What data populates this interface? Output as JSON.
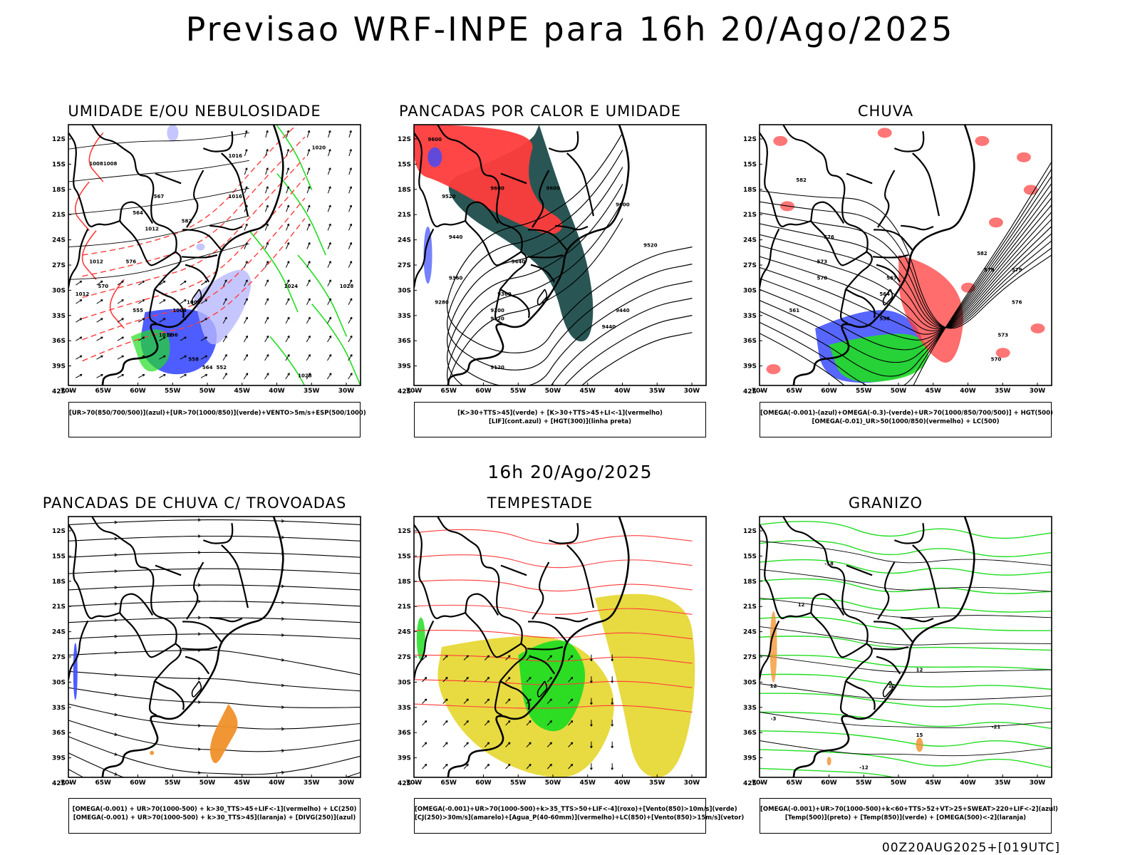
{
  "title": "Previsao WRF-INPE  para 16h 20/Ago/2025",
  "mid_label": "16h 20/Ago/2025",
  "footer": "00Z20AUG2025+[019UTC]",
  "lat_labels": [
    "12S",
    "15S",
    "18S",
    "21S",
    "24S",
    "27S",
    "30S",
    "33S",
    "36S",
    "39S",
    "42S"
  ],
  "lon_labels": [
    "70W",
    "65W",
    "60W",
    "55W",
    "50W",
    "45W",
    "40W",
    "35W",
    "30W"
  ],
  "colors": {
    "blue": "#3a4bff",
    "lightblue": "#b8b8ff",
    "green": "#22dd22",
    "red": "#ff3c3c",
    "darkteal": "#1d4d4b",
    "yellow": "#e5d62c",
    "orange": "#f0902a",
    "purple": "#6a2fd0"
  },
  "panels": [
    {
      "title": "UMIDADE E/OU NEBULOSIDADE",
      "legend": [
        "[UR>70(850/700/500)](azul)+[UR>70(1000/850)](verde)+VENTO>5m/s+ESP(500/1000)"
      ],
      "labels": [
        "1008",
        "1016",
        "1020",
        "1012",
        "1012",
        "1016",
        "1008",
        "1012",
        "1024",
        "1028",
        "1028",
        "1004",
        "1008",
        "1012",
        "996",
        "555",
        "570",
        "576",
        "564",
        "582",
        "567",
        "564",
        "552",
        "558"
      ]
    },
    {
      "title": "PANCADAS POR CALOR E UMIDADE",
      "legend": [
        "[K>30+TTS>45](verde) + [K>30+TTS>45+LI<-1](vermelho)",
        "[LIF](cont.azul) + [HGT(300)](linha preta)"
      ],
      "labels": [
        "9600",
        "9520",
        "9600",
        "9600",
        "9600",
        "9440",
        "9520",
        "9360",
        "9440",
        "9440",
        "9360",
        "9280",
        "9200",
        "9120",
        "9440",
        "9120"
      ]
    },
    {
      "title": "CHUVA",
      "legend": [
        "[OMEGA(-0.001)-(azul)+OMEGA(-0.3)-(verde)+UR>70(1000/850/700/500)] + HGT(500)",
        "[OMEGA(-0.01)_UR>50(1000/850)(vermelho) + LC(500)"
      ],
      "labels": [
        "582",
        "582",
        "579",
        "576",
        "573",
        "570",
        "567",
        "564",
        "579",
        "576",
        "573",
        "570",
        "561",
        "558"
      ]
    },
    {
      "title": "PANCADAS DE CHUVA C/ TROVOADAS",
      "legend": [
        "[OMEGA(-0.001) + UR>70(1000-500) + k>30_TTS>45+LIF<-1](vermelho) + LC(250)",
        "[OMEGA(-0.001) + UR>70(1000-500) + k>30_TTS>45](laranja) + [DIVG(250)](azul)"
      ],
      "labels": []
    },
    {
      "title": "TEMPESTADE",
      "legend": [
        "[OMEGA(-0.001)+UR>70(1000-500)+k>35_TTS>50+LIF<-4](roxo)+[Vento(850)>10m/s](verde)",
        "[CJ(250)>30m/s](amarelo)+[Agua_P(40-60mm)](vermelho)+LC(850)+[Vento(850)>15m/s](vetor)"
      ],
      "labels": []
    },
    {
      "title": "GRANIZO",
      "legend": [
        "[OMEGA(-0.001)+UR>70(1000-500)+k<60+TTS>52+VT>25+SWEAT>220+LIF<-2](azul)",
        "[Temp(500)](preto) + [Temp(850)](verde) + [OMEGA(500)<-2](laranja)"
      ],
      "labels": [
        "12",
        "12",
        "12",
        "-12",
        "12",
        "15",
        "-18",
        "-21",
        "-3"
      ]
    }
  ]
}
